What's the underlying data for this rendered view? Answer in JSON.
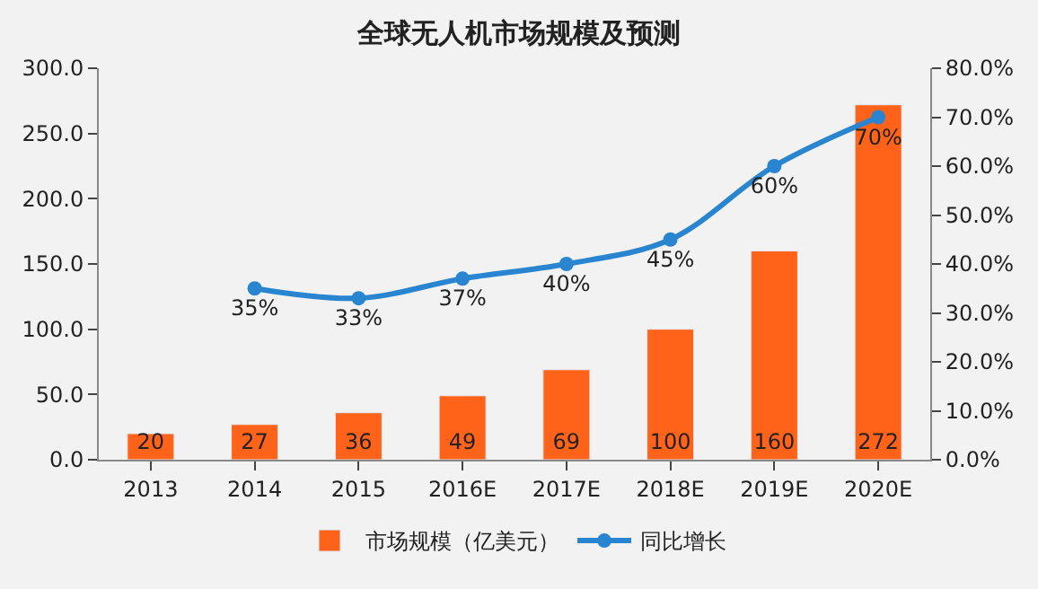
{
  "chart_data": {
    "type": "bar",
    "title": "全球无人机市场规模及预测",
    "categories": [
      "2013",
      "2014",
      "2015",
      "2016E",
      "2017E",
      "2018E",
      "2019E",
      "2020E"
    ],
    "series": [
      {
        "name": "市场规模（亿美元）",
        "color": "#ff6319",
        "values": [
          20,
          27,
          36,
          49,
          69,
          100,
          160,
          272
        ],
        "value_labels": [
          "20",
          "27",
          "36",
          "49",
          "69",
          "100",
          "160",
          "272"
        ]
      },
      {
        "name": "同比增长",
        "type": "line",
        "axis": "y2",
        "color": "#2a85d0",
        "marker": "circle",
        "values": [
          null,
          35,
          33,
          37,
          40,
          45,
          60,
          70
        ],
        "value_labels": [
          null,
          "35%",
          "33%",
          "37%",
          "40%",
          "45%",
          "60%",
          "70%"
        ]
      }
    ],
    "ylim": [
      0,
      300
    ],
    "yticks": [
      {
        "value": 0,
        "label": "0.0"
      },
      {
        "value": 50,
        "label": "50.0"
      },
      {
        "value": 100,
        "label": "100.0"
      },
      {
        "value": 150,
        "label": "150.0"
      },
      {
        "value": 200,
        "label": "200.0"
      },
      {
        "value": 250,
        "label": "250.0"
      },
      {
        "value": 300,
        "label": "300.0"
      }
    ],
    "y2lim": [
      0,
      80
    ],
    "y2ticks": [
      {
        "value": 0,
        "label": "0.0%"
      },
      {
        "value": 10,
        "label": "10.0%"
      },
      {
        "value": 20,
        "label": "20.0%"
      },
      {
        "value": 30,
        "label": "30.0%"
      },
      {
        "value": 40,
        "label": "40.0%"
      },
      {
        "value": 50,
        "label": "50.0%"
      },
      {
        "value": 60,
        "label": "60.0%"
      },
      {
        "value": 70,
        "label": "70.0%"
      },
      {
        "value": 80,
        "label": "80.0%"
      }
    ],
    "grid": false,
    "legend": "bottom"
  }
}
